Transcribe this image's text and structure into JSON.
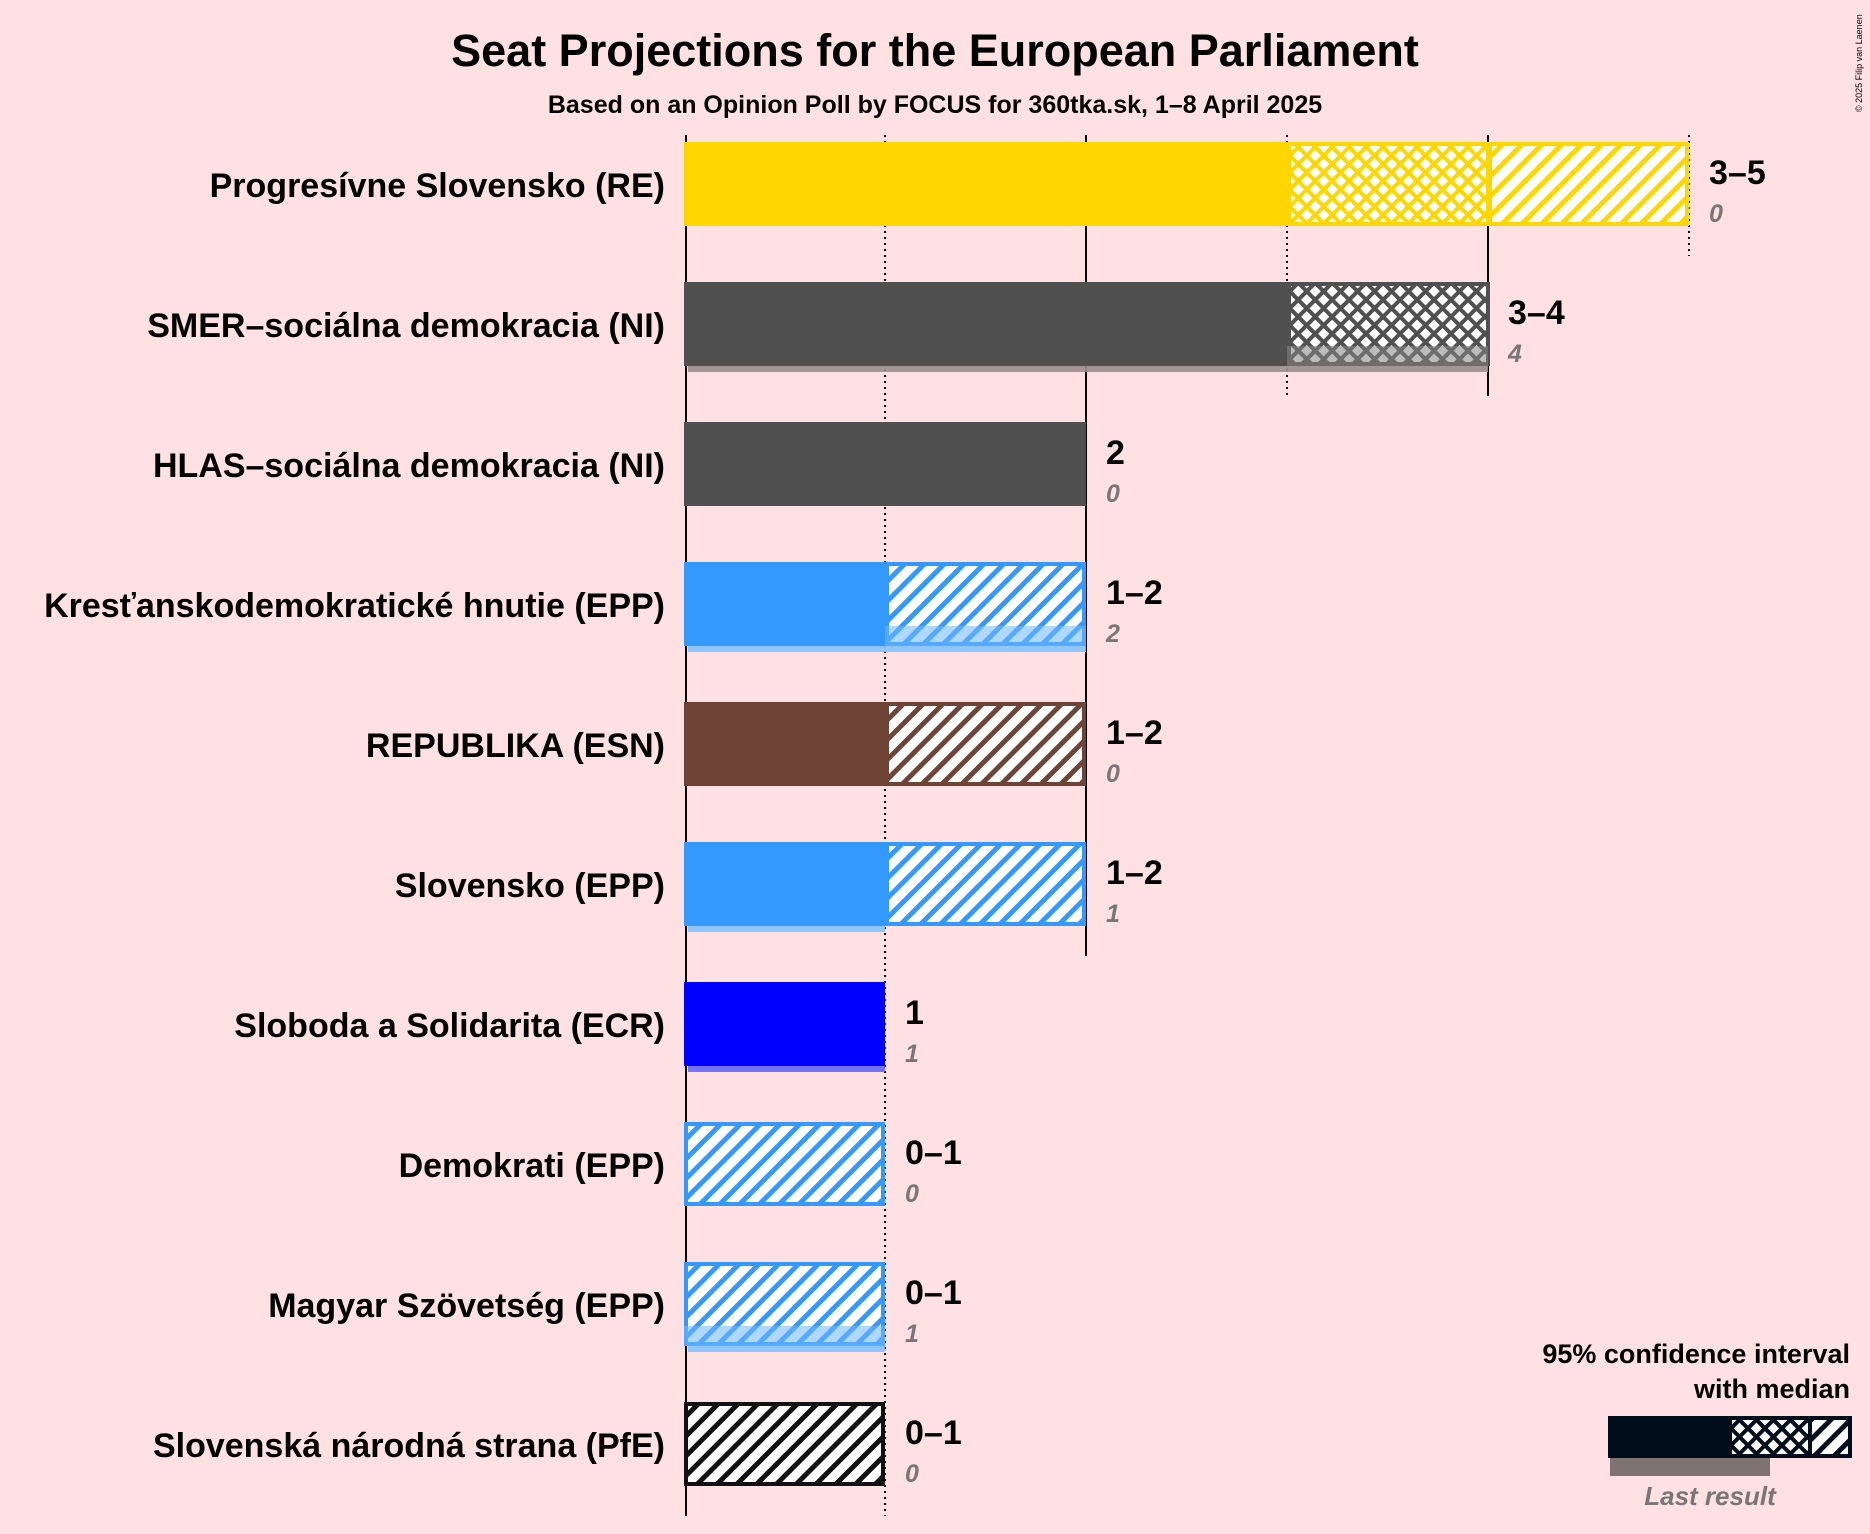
{
  "title": "Seat Projections for the European Parliament",
  "subtitle": "Based on an Opinion Poll by FOCUS for 360tka.sk, 1–8 April 2025",
  "copyright": "© 2025 Filip van Laenen",
  "legend": {
    "line1": "95% confidence interval",
    "line2": "with median",
    "last_result": "Last result"
  },
  "chart_data": {
    "type": "bar",
    "orientation": "horizontal",
    "title": "Seat Projections for the European Parliament",
    "subtitle": "Based on an Opinion Poll by FOCUS for 360tka.sk, 1–8 April 2025",
    "x_axis": {
      "min": 0,
      "max": 5,
      "gridlines": [
        1,
        2,
        3,
        4,
        5
      ]
    },
    "parties": [
      {
        "name": "Progresívne Slovensko (RE)",
        "color": "#FFD700",
        "low": 3,
        "median": 4,
        "high": 5,
        "range_label": "3–5",
        "last": 0,
        "last_label": "0"
      },
      {
        "name": "SMER–sociálna demokracia (NI)",
        "color": "#505050",
        "low": 3,
        "median": 4,
        "high": 4,
        "range_label": "3–4",
        "last": 4,
        "last_label": "4"
      },
      {
        "name": "HLAS–sociálna demokracia (NI)",
        "color": "#505050",
        "low": 2,
        "median": 2,
        "high": 2,
        "range_label": "2",
        "last": 0,
        "last_label": "0"
      },
      {
        "name": "Kresťanskodemokratické hnutie (EPP)",
        "color": "#3399FF",
        "low": 1,
        "median": 1,
        "high": 2,
        "range_label": "1–2",
        "last": 2,
        "last_label": "2"
      },
      {
        "name": "REPUBLIKA (ESN)",
        "color": "#6E4437",
        "low": 1,
        "median": 1,
        "high": 2,
        "range_label": "1–2",
        "last": 0,
        "last_label": "0"
      },
      {
        "name": "Slovensko (EPP)",
        "color": "#3399FF",
        "low": 1,
        "median": 1,
        "high": 2,
        "range_label": "1–2",
        "last": 1,
        "last_label": "1"
      },
      {
        "name": "Sloboda a Solidarita (ECR)",
        "color": "#0000FF",
        "low": 1,
        "median": 1,
        "high": 1,
        "range_label": "1",
        "last": 1,
        "last_label": "1"
      },
      {
        "name": "Demokrati (EPP)",
        "color": "#3399FF",
        "low": 0,
        "median": 0,
        "high": 1,
        "range_label": "0–1",
        "last": 0,
        "last_label": "0"
      },
      {
        "name": "Magyar Szövetség (EPP)",
        "color": "#3399FF",
        "low": 0,
        "median": 0,
        "high": 1,
        "range_label": "0–1",
        "last": 1,
        "last_label": "1"
      },
      {
        "name": "Slovenská národná strana (PfE)",
        "color": "#111111",
        "low": 0,
        "median": 0,
        "high": 1,
        "range_label": "0–1",
        "last": 0,
        "last_label": "0"
      }
    ]
  }
}
